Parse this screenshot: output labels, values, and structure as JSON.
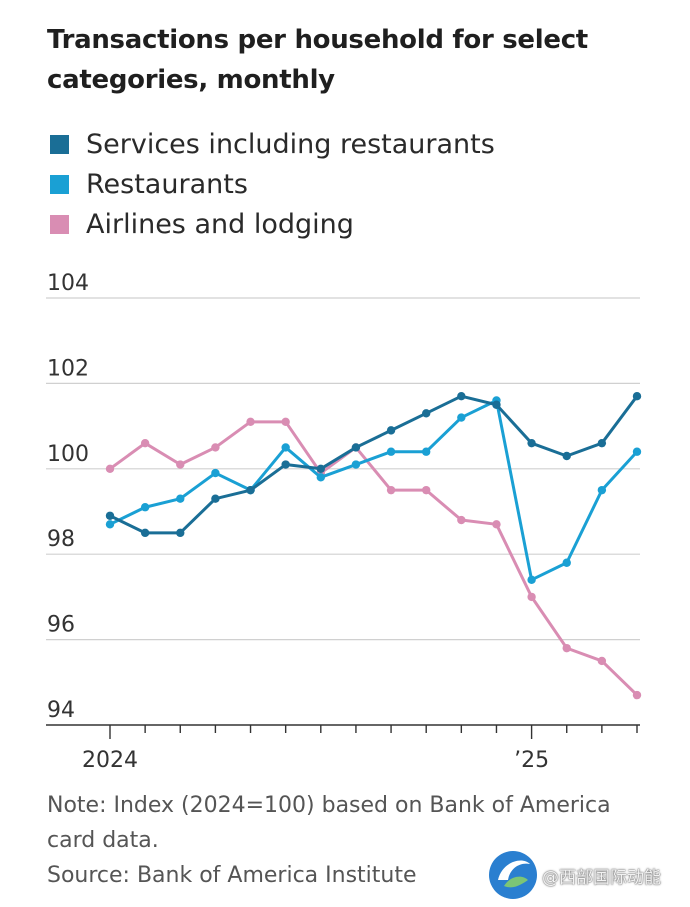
{
  "title": "Transactions per household for select categories, monthly",
  "legend": [
    {
      "label": "Services including restaurants",
      "color": "#1a6e96"
    },
    {
      "label": "Restaurants",
      "color": "#1aa0d4"
    },
    {
      "label": "Airlines and lodging",
      "color": "#d98db3"
    }
  ],
  "chart_data": {
    "type": "line",
    "title": "Transactions per household for select categories, monthly",
    "xlabel": "",
    "ylabel": "",
    "ylim": [
      94,
      104
    ],
    "yticks": [
      94,
      96,
      98,
      100,
      102,
      104
    ],
    "ytick_labels": [
      "94",
      "96",
      "98",
      "100",
      "102",
      "104"
    ],
    "x": [
      0,
      1,
      2,
      3,
      4,
      5,
      6,
      7,
      8,
      9,
      10,
      11,
      12,
      13,
      14,
      15
    ],
    "xtick_labels": [
      {
        "index": 0,
        "label": "2024"
      },
      {
        "index": 12,
        "label": "’25"
      }
    ],
    "grid": "horizontal",
    "series": [
      {
        "name": "Services including restaurants",
        "color": "#1a6e96",
        "values": [
          98.9,
          98.5,
          98.5,
          99.3,
          99.5,
          100.1,
          100.0,
          100.5,
          100.9,
          101.3,
          101.7,
          101.5,
          100.6,
          100.3,
          100.6,
          101.7
        ]
      },
      {
        "name": "Restaurants",
        "color": "#1aa0d4",
        "values": [
          98.7,
          99.1,
          99.3,
          99.9,
          99.5,
          100.5,
          99.8,
          100.1,
          100.4,
          100.4,
          101.2,
          101.6,
          97.4,
          97.8,
          99.5,
          100.4
        ]
      },
      {
        "name": "Airlines and lodging",
        "color": "#d98db3",
        "values": [
          100.0,
          100.6,
          100.1,
          100.5,
          101.1,
          101.1,
          99.9,
          100.5,
          99.5,
          99.5,
          98.8,
          98.7,
          97.0,
          95.8,
          95.5,
          94.7
        ]
      }
    ]
  },
  "notes": {
    "note": "Note: Index (2024=100) based on Bank of America card data.",
    "source": "Source: Bank of America Institute"
  },
  "watermark": {
    "text": "@西部国际动能"
  }
}
